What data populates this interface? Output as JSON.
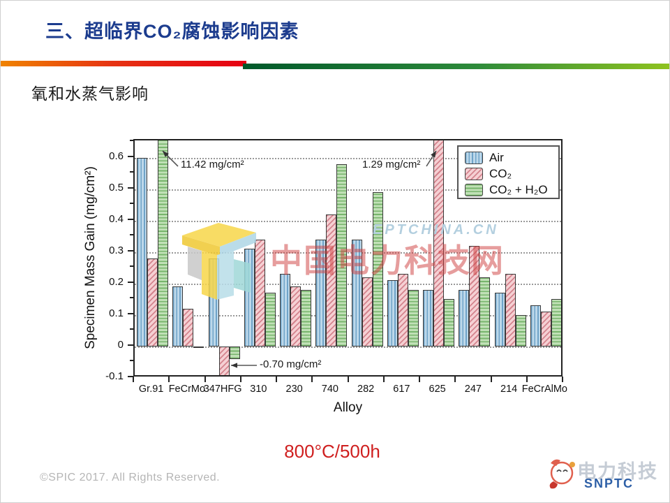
{
  "slide": {
    "title": "三、超临界CO₂腐蚀影响因素",
    "subtitle": "氧和水蒸气影响",
    "condition_label": "800°C/500h",
    "copyright": "©SPIC 2017. All Rights Reserved.",
    "accent_colors": {
      "title_blue": "#1c3c8e",
      "rule_orange": "#f08300",
      "rule_red": "#e60012",
      "rule_dark_green": "#00582a",
      "rule_light_green": "#8fc31f",
      "condition_red": "#cf1f1f"
    }
  },
  "watermark": {
    "site_en": "EPTCHINA.CN",
    "site_cn": "中国电力科技网"
  },
  "footer_logo": {
    "brand_cn": "电力科技",
    "brand_en": "SNPTC"
  },
  "chart_data": {
    "type": "bar",
    "title": "",
    "xlabel": "Alloy",
    "ylabel": "Specimen Mass Gain (mg/cm²)",
    "ylim": [
      -0.1,
      0.655
    ],
    "yticks": [
      "-0.1",
      "0",
      "0.1",
      "0.2",
      "0.3",
      "0.4",
      "0.5",
      "0.6"
    ],
    "grid": "horizontal dotted at each 0.1",
    "legend_position": "top-right inside plot",
    "categories": [
      "Gr.91",
      "FeCrMo",
      "347HFG",
      "310",
      "230",
      "740",
      "282",
      "617",
      "625",
      "247",
      "214",
      "FeCrAlMo"
    ],
    "series": [
      {
        "name": "Air",
        "pattern": "vertical-stripes",
        "fill": "#bdd8ea",
        "stripe": "#6fa3c8",
        "values": [
          0.6,
          0.19,
          0.28,
          0.31,
          0.23,
          0.34,
          0.34,
          0.21,
          0.18,
          0.18,
          0.17,
          0.13
        ]
      },
      {
        "name": "CO₂",
        "pattern": "diagonal-hatch",
        "fill": "#f5d0d3",
        "stripe": "#d4848e",
        "values": [
          0.28,
          0.12,
          -0.7,
          0.34,
          0.19,
          0.42,
          0.22,
          0.23,
          1.29,
          0.32,
          0.23,
          0.11
        ]
      },
      {
        "name": "CO₂ + H₂O",
        "pattern": "horizontal-stripes",
        "fill": "#c0e0b6",
        "stripe": "#77b56c",
        "values": [
          11.42,
          0.0,
          -0.04,
          0.17,
          0.18,
          0.58,
          0.49,
          0.18,
          0.15,
          0.22,
          0.1,
          0.15
        ]
      }
    ],
    "annotations": [
      {
        "text": "11.42 mg/cm²",
        "target": "Gr.91 CO₂+H₂O bar (off scale top)",
        "tx": 66,
        "ty": 26,
        "x1": 62,
        "y1": 37,
        "x2": 40,
        "y2": 15
      },
      {
        "text": "1.29 mg/cm²",
        "target": "625 CO₂ bar (off scale top)",
        "tx": 326,
        "ty": 26,
        "x1": 418,
        "y1": 37,
        "x2": 432,
        "y2": 15
      },
      {
        "text": "-0.70 mg/cm²",
        "target": "347HFG CO₂ bar (off scale bottom)",
        "tx": 179,
        "ty": 312,
        "x1": 175,
        "y1": 322,
        "x2": 138,
        "y2": 322
      }
    ]
  }
}
